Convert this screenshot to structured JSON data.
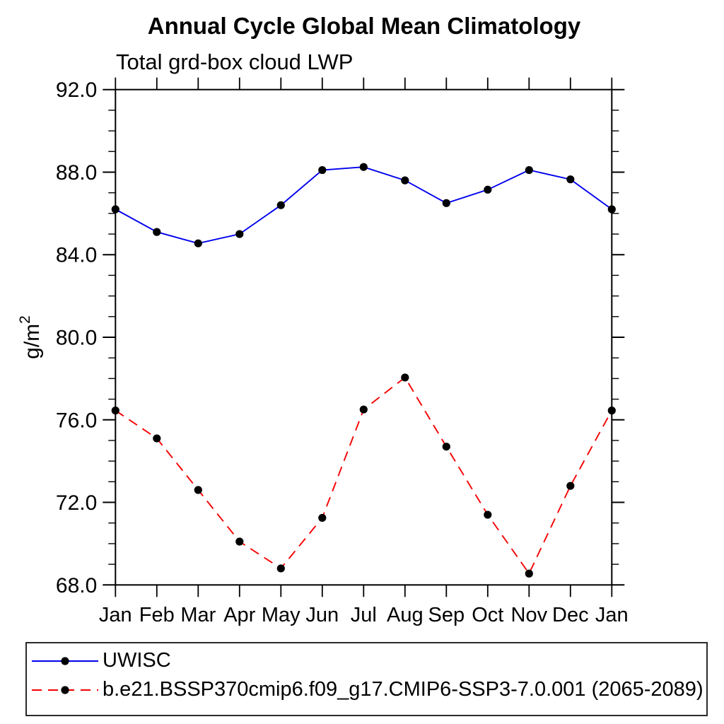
{
  "chart_data": {
    "type": "line",
    "title": "Annual Cycle Global Mean Climatology",
    "subtitle": "Total grd-box cloud LWP",
    "ylabel": "g/m²",
    "ylabel_parts": {
      "base": "g/m",
      "sup": "2"
    },
    "categories": [
      "Jan",
      "Feb",
      "Mar",
      "Apr",
      "May",
      "Jun",
      "Jul",
      "Aug",
      "Sep",
      "Oct",
      "Nov",
      "Dec",
      "Jan"
    ],
    "ylim": [
      68.0,
      92.0
    ],
    "ytick_major_values": [
      68,
      72,
      76,
      80,
      84,
      88,
      92
    ],
    "ytick_major_labels": [
      "68.0",
      "72.0",
      "76.0",
      "80.0",
      "84.0",
      "88.0",
      "92.0"
    ],
    "ytick_minor_step": 1.0,
    "grid": false,
    "legend_position": "bottom-left",
    "marker_color": "#000000",
    "axis_color": "#000000",
    "series": [
      {
        "name": "UWISC",
        "color": "#0000ee",
        "line_style": "solid",
        "marker": "filled-circle",
        "values": [
          86.2,
          85.1,
          84.55,
          85.0,
          86.4,
          88.1,
          88.25,
          87.6,
          86.5,
          87.15,
          88.1,
          87.65,
          86.2
        ]
      },
      {
        "name": "b.e21.BSSP370cmip6.f09_g17.CMIP6-SSP3-7.0.001 (2065-2089)",
        "color": "#f50000",
        "line_style": "dashed",
        "marker": "filled-circle",
        "values": [
          76.45,
          75.1,
          72.6,
          70.1,
          68.8,
          71.25,
          76.5,
          78.05,
          74.7,
          71.4,
          68.55,
          72.8,
          76.45
        ]
      }
    ]
  }
}
